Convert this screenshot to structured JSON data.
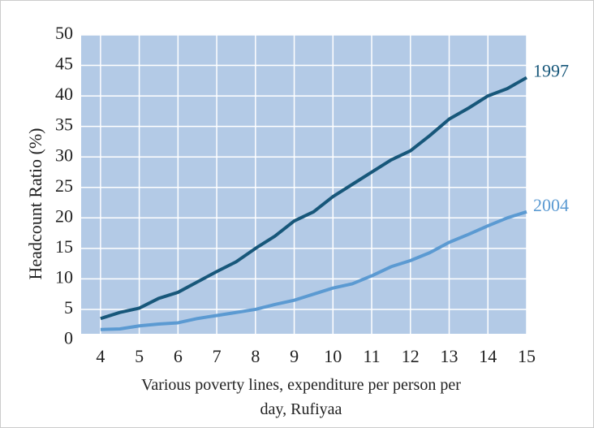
{
  "chart_data": {
    "type": "line",
    "x_label": "Various poverty lines, expenditure per person per day, Rufiyaa",
    "y_label": "Headcount Ratio (%)",
    "x": [
      4,
      4.5,
      5,
      5.5,
      6,
      6.5,
      7,
      7.5,
      8,
      8.5,
      9,
      9.5,
      10,
      10.5,
      11,
      11.5,
      12,
      12.5,
      13,
      13.5,
      14,
      14.5,
      15
    ],
    "series": [
      {
        "name": "1997",
        "color": "#17577a",
        "values": [
          3.5,
          4.5,
          5.2,
          6.8,
          7.8,
          9.5,
          11.2,
          12.8,
          15,
          17,
          19.5,
          21,
          23.5,
          25.5,
          27.5,
          29.5,
          31,
          33.5,
          36.2,
          38,
          40,
          41.2,
          43
        ]
      },
      {
        "name": "2004",
        "color": "#5b9ad2",
        "values": [
          1.7,
          1.8,
          2.3,
          2.6,
          2.8,
          3.5,
          4,
          4.5,
          5,
          5.8,
          6.5,
          7.5,
          8.5,
          9.2,
          10.5,
          12,
          13,
          14.3,
          16,
          17.3,
          18.7,
          20,
          21
        ]
      }
    ],
    "xlim": [
      3.5,
      15
    ],
    "xticks": [
      4,
      5,
      6,
      7,
      8,
      9,
      10,
      11,
      12,
      13,
      14,
      15
    ],
    "ylim": [
      1,
      50
    ],
    "yticks": [
      0,
      5,
      10,
      15,
      20,
      25,
      30,
      35,
      40,
      45,
      50
    ],
    "grid": true,
    "background": "#b3cae6"
  }
}
